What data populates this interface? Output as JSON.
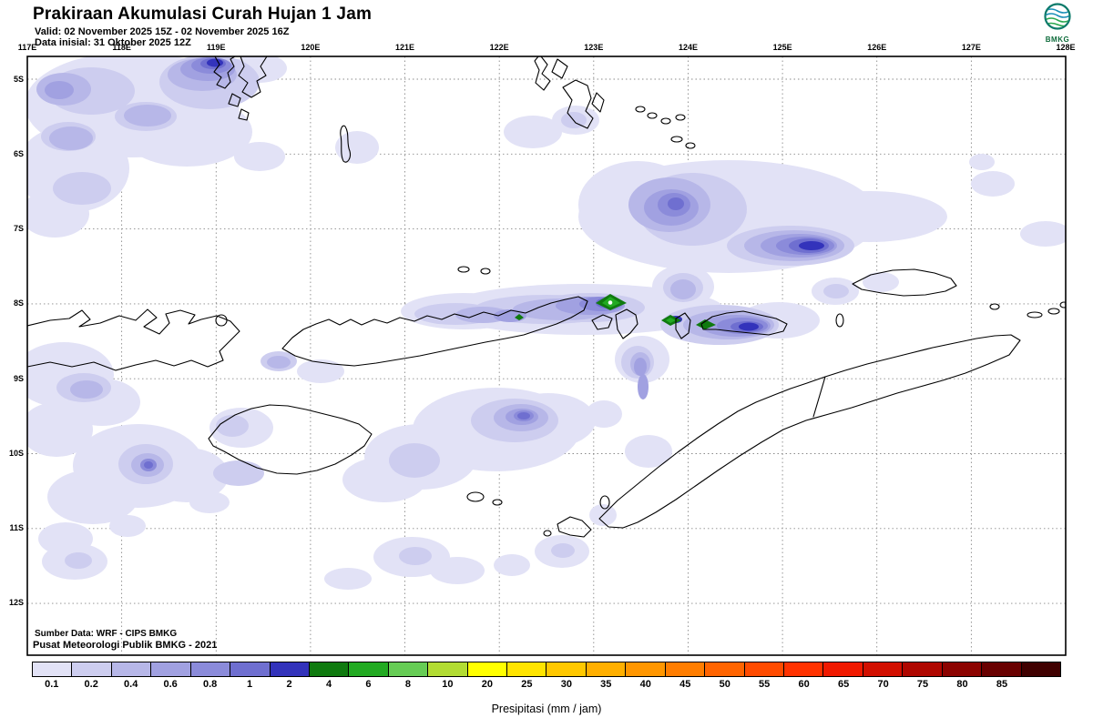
{
  "header": {
    "title": "Prakiraan Akumulasi Curah Hujan 1 Jam",
    "valid": "Valid: 02 November 2025 15Z - 02 November 2025 16Z",
    "data_inisial": "Data inisial: 31 Oktober 2025 12Z",
    "logo_label": "BMKG"
  },
  "map": {
    "lon_labels": [
      "117E",
      "118E",
      "119E",
      "120E",
      "121E",
      "122E",
      "123E",
      "124E",
      "125E",
      "126E",
      "127E",
      "128E"
    ],
    "lat_labels": [
      "5S",
      "6S",
      "7S",
      "8S",
      "9S",
      "10S",
      "11S",
      "12S"
    ],
    "source_line1": "Sumber Data: WRF - CIPS BMKG",
    "source_line2": "Pusat Meteorologi Publik BMKG - 2021"
  },
  "legend": {
    "caption": "Presipitasi (mm / jam)",
    "values": [
      "0.1",
      "0.2",
      "0.4",
      "0.6",
      "0.8",
      "1",
      "2",
      "4",
      "6",
      "8",
      "10",
      "20",
      "25",
      "30",
      "35",
      "40",
      "45",
      "50",
      "55",
      "60",
      "65",
      "70",
      "75",
      "80",
      "85"
    ],
    "colors": [
      "#E2E2F6",
      "#CDCDEF",
      "#B7B7E8",
      "#A1A1E1",
      "#8B8BDA",
      "#6F6FD0",
      "#3333BB",
      "#0F7A0F",
      "#22AA22",
      "#66CC55",
      "#B2DC33",
      "#FFFF00",
      "#FFE400",
      "#FFC800",
      "#FFAF00",
      "#FF9600",
      "#FF7D00",
      "#FF6400",
      "#FF4B00",
      "#FF3200",
      "#F01900",
      "#D20F00",
      "#AF0700",
      "#8C0300",
      "#690000",
      "#400000"
    ]
  }
}
